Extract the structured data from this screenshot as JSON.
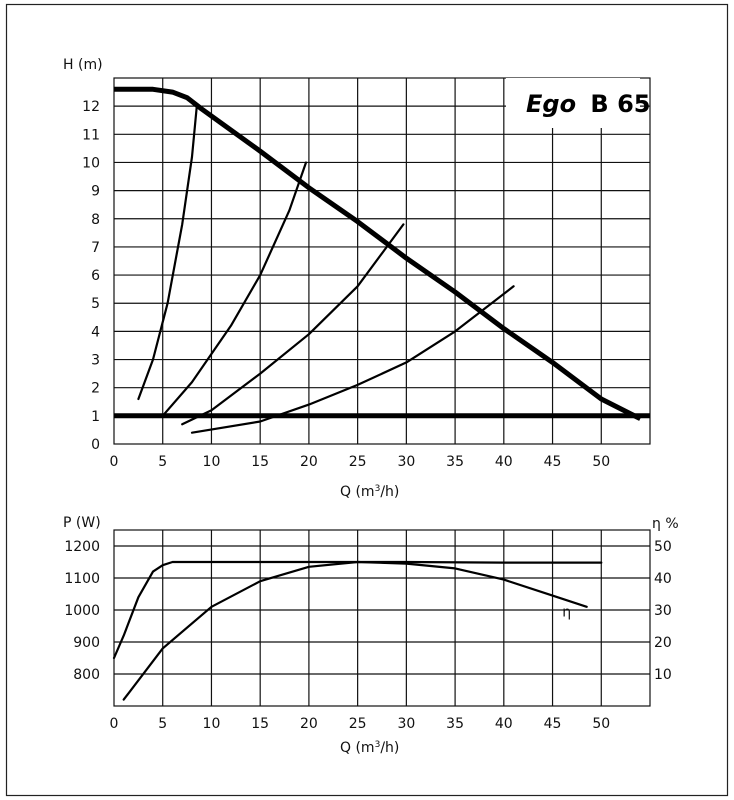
{
  "chart_data": [
    {
      "type": "line",
      "title": "Ego B 65",
      "title_parts": {
        "brand": "Ego",
        "model": "B 65"
      },
      "ylabel": "H (m)",
      "xlabel_prefix": "Q (m",
      "xlabel_sup": "3",
      "xlabel_suffix": "/h)",
      "xlim": [
        0,
        55
      ],
      "ylim": [
        0,
        13
      ],
      "xticks": [
        0,
        5,
        10,
        15,
        20,
        25,
        30,
        35,
        40,
        45,
        50
      ],
      "yticks": [
        0,
        1,
        2,
        3,
        4,
        5,
        6,
        7,
        8,
        9,
        10,
        11,
        12
      ],
      "grid": true,
      "series": [
        {
          "style": "heavy",
          "x": [
            0,
            4,
            6,
            7.5,
            9,
            15,
            20,
            25,
            30,
            35,
            40,
            45,
            50,
            54
          ],
          "y": [
            12.6,
            12.6,
            12.5,
            12.3,
            11.9,
            10.4,
            9.1,
            7.9,
            6.6,
            5.4,
            4.1,
            2.9,
            1.6,
            0.9
          ]
        },
        {
          "style": "heavy",
          "x": [
            0,
            55
          ],
          "y": [
            1,
            1
          ]
        },
        {
          "style": "thin",
          "x": [
            2.5,
            4,
            5.5,
            7,
            8,
            8.5
          ],
          "y": [
            1.6,
            3.0,
            5.0,
            7.8,
            10.2,
            12.0
          ]
        },
        {
          "style": "thin",
          "x": [
            5,
            8,
            12,
            15,
            18,
            19.7
          ],
          "y": [
            1.0,
            2.2,
            4.2,
            6.0,
            8.3,
            10.0
          ]
        },
        {
          "style": "thin",
          "x": [
            7,
            10,
            15,
            20,
            25,
            29.7
          ],
          "y": [
            0.7,
            1.2,
            2.5,
            3.9,
            5.6,
            7.8
          ]
        },
        {
          "style": "thin",
          "x": [
            8,
            15,
            20,
            25,
            30,
            35,
            41
          ],
          "y": [
            0.4,
            0.8,
            1.4,
            2.1,
            2.9,
            4.0,
            5.6
          ]
        }
      ]
    },
    {
      "type": "line",
      "ylabel": "P (W)",
      "y2label": "η %",
      "xlabel_prefix": "Q (m",
      "xlabel_sup": "3",
      "xlabel_suffix": "/h)",
      "xlim": [
        0,
        55
      ],
      "ylim": [
        700,
        1250
      ],
      "y2lim": [
        0,
        55
      ],
      "xticks": [
        0,
        5,
        10,
        15,
        20,
        25,
        30,
        35,
        40,
        45,
        50
      ],
      "yticks": [
        800,
        900,
        1000,
        1100,
        1200
      ],
      "y2ticks": [
        10,
        20,
        30,
        40,
        50
      ],
      "grid": true,
      "series": [
        {
          "name": "P",
          "axis": "left",
          "x": [
            0,
            1,
            2.5,
            4,
            5,
            6,
            10,
            20,
            30,
            40,
            50
          ],
          "y": [
            850,
            920,
            1040,
            1120,
            1140,
            1150,
            1150,
            1150,
            1150,
            1148,
            1148
          ]
        },
        {
          "name": "η",
          "axis": "right",
          "x": [
            1,
            5,
            10,
            15,
            20,
            25,
            30,
            35,
            40,
            45,
            48.5
          ],
          "y": [
            2,
            18,
            31,
            39,
            43.5,
            45,
            44.5,
            43,
            39.5,
            34.5,
            31
          ]
        }
      ],
      "annotations": [
        {
          "text": "η",
          "x": 46,
          "y2": 28
        }
      ]
    }
  ]
}
